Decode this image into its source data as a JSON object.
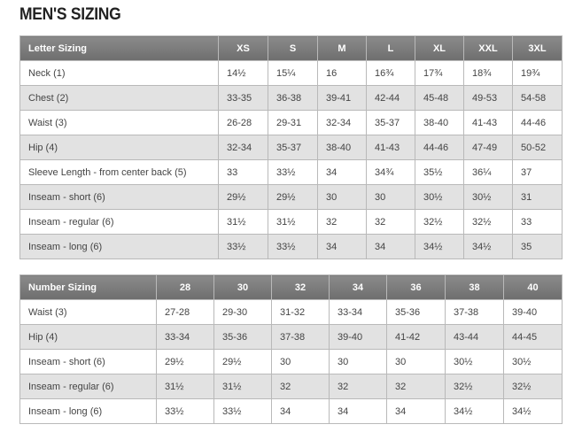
{
  "page_title": "MEN'S SIZING",
  "letter_table": {
    "header": [
      "Letter Sizing",
      "XS",
      "S",
      "M",
      "L",
      "XL",
      "XXL",
      "3XL"
    ],
    "rows": [
      [
        "Neck (1)",
        "14½",
        "15¼",
        "16",
        "16¾",
        "17¾",
        "18¾",
        "19¾"
      ],
      [
        "Chest (2)",
        "33-35",
        "36-38",
        "39-41",
        "42-44",
        "45-48",
        "49-53",
        "54-58"
      ],
      [
        "Waist (3)",
        "26-28",
        "29-31",
        "32-34",
        "35-37",
        "38-40",
        "41-43",
        "44-46"
      ],
      [
        "Hip (4)",
        "32-34",
        "35-37",
        "38-40",
        "41-43",
        "44-46",
        "47-49",
        "50-52"
      ],
      [
        "Sleeve Length - from center back (5)",
        "33",
        "33½",
        "34",
        "34¾",
        "35½",
        "36¼",
        "37"
      ],
      [
        "Inseam - short (6)",
        "29½",
        "29½",
        "30",
        "30",
        "30½",
        "30½",
        "31"
      ],
      [
        "Inseam - regular (6)",
        "31½",
        "31½",
        "32",
        "32",
        "32½",
        "32½",
        "33"
      ],
      [
        "Inseam - long (6)",
        "33½",
        "33½",
        "34",
        "34",
        "34½",
        "34½",
        "35"
      ]
    ]
  },
  "number_table": {
    "header": [
      "Number Sizing",
      "28",
      "30",
      "32",
      "34",
      "36",
      "38",
      "40"
    ],
    "rows": [
      [
        "Waist (3)",
        "27-28",
        "29-30",
        "31-32",
        "33-34",
        "35-36",
        "37-38",
        "39-40"
      ],
      [
        "Hip (4)",
        "33-34",
        "35-36",
        "37-38",
        "39-40",
        "41-42",
        "43-44",
        "44-45"
      ],
      [
        "Inseam - short (6)",
        "29½",
        "29½",
        "30",
        "30",
        "30",
        "30½",
        "30½"
      ],
      [
        "Inseam - regular (6)",
        "31½",
        "31½",
        "32",
        "32",
        "32",
        "32½",
        "32½"
      ],
      [
        "Inseam - long (6)",
        "33½",
        "33½",
        "34",
        "34",
        "34",
        "34½",
        "34½"
      ]
    ]
  }
}
